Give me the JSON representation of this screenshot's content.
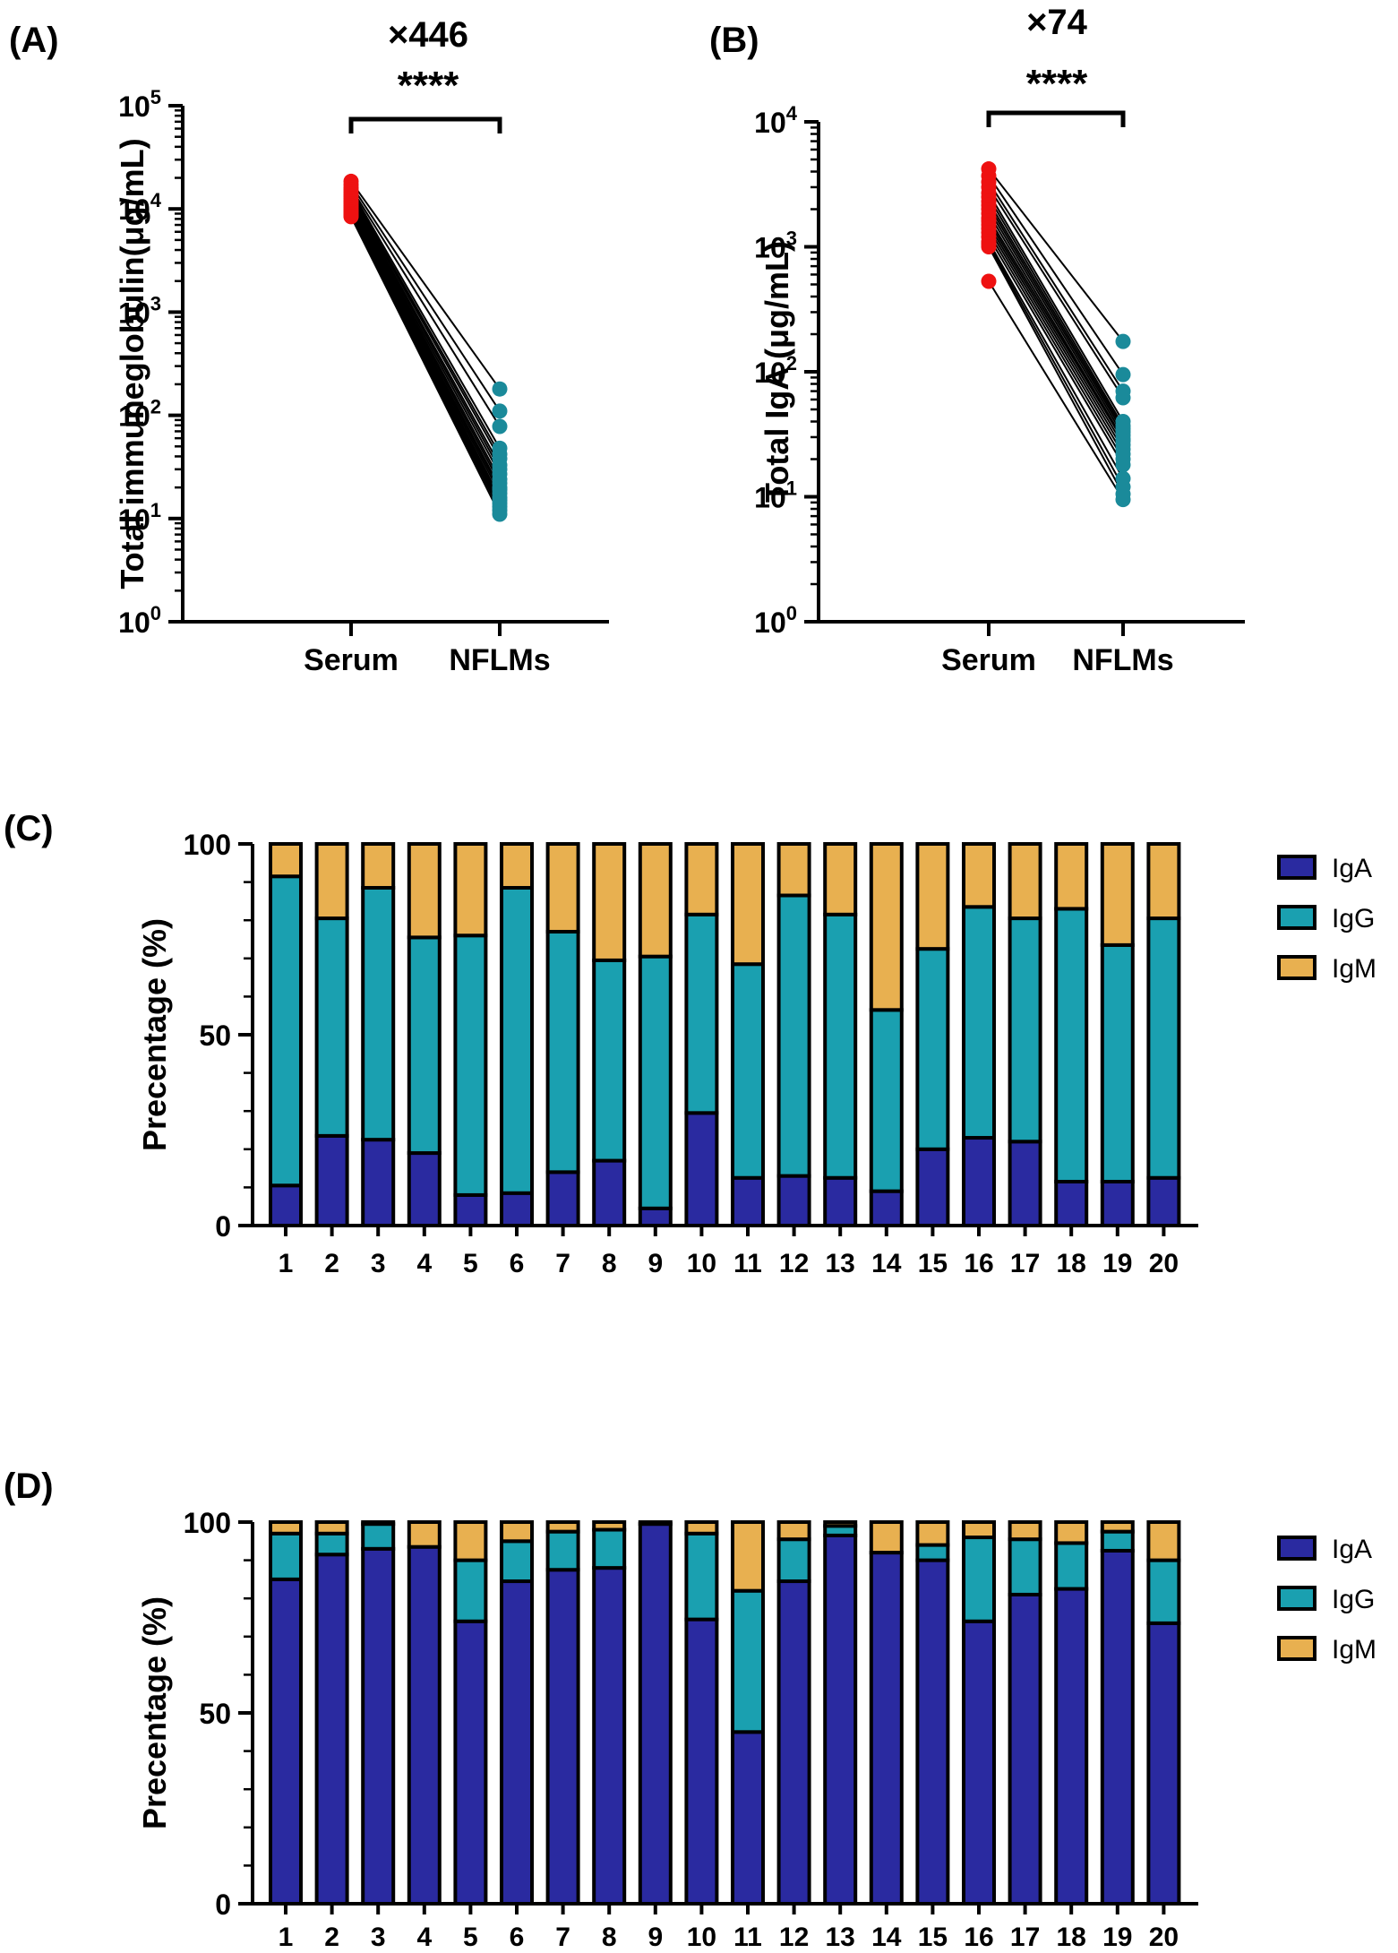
{
  "chart_data": [
    {
      "panel": "(A)",
      "type": "scatter",
      "scale": "log",
      "fold_label": "×446",
      "sig_label": "****",
      "ylabel": "Total immuneglobulin(μg/mL)",
      "ylim": [
        1,
        100000
      ],
      "ytick_exponents": [
        "0",
        "1",
        "2",
        "3",
        "4",
        "5"
      ],
      "categories": [
        "Serum",
        "NFLMs"
      ],
      "colors": {
        "serum": "#ee1111",
        "nflms": "#1a8a9a",
        "line": "#000000"
      },
      "pairs": [
        [
          18500,
          180
        ],
        [
          17200,
          110
        ],
        [
          16000,
          78
        ],
        [
          15300,
          48
        ],
        [
          14500,
          42
        ],
        [
          13800,
          38
        ],
        [
          13200,
          33
        ],
        [
          12600,
          30
        ],
        [
          12000,
          27
        ],
        [
          11600,
          24
        ],
        [
          11100,
          22
        ],
        [
          10700,
          20
        ],
        [
          10300,
          19
        ],
        [
          9900,
          17.5
        ],
        [
          9600,
          16
        ],
        [
          9300,
          15
        ],
        [
          9000,
          14
        ],
        [
          8800,
          13
        ],
        [
          8600,
          12
        ],
        [
          8400,
          11
        ]
      ]
    },
    {
      "panel": "(B)",
      "type": "scatter",
      "scale": "log",
      "fold_label": "×74",
      "sig_label": "****",
      "ylabel": "Total IgA (μg/mL)",
      "ylim": [
        1,
        10000
      ],
      "ytick_exponents": [
        "0",
        "1",
        "2",
        "3",
        "4"
      ],
      "categories": [
        "Serum",
        "NFLMs"
      ],
      "colors": {
        "serum": "#ee1111",
        "nflms": "#1a8a9a",
        "line": "#000000"
      },
      "pairs": [
        [
          4200,
          175
        ],
        [
          3700,
          95
        ],
        [
          3300,
          70
        ],
        [
          3000,
          62
        ],
        [
          2700,
          40
        ],
        [
          2500,
          37
        ],
        [
          2300,
          35
        ],
        [
          2150,
          33
        ],
        [
          2000,
          31
        ],
        [
          1850,
          29
        ],
        [
          1700,
          28
        ],
        [
          1600,
          26
        ],
        [
          1500,
          24
        ],
        [
          1400,
          22
        ],
        [
          1300,
          20
        ],
        [
          1200,
          18
        ],
        [
          1100,
          14
        ],
        [
          1050,
          12
        ],
        [
          1000,
          10.5
        ],
        [
          530,
          9.5
        ]
      ]
    },
    {
      "panel": "(C)",
      "type": "bar",
      "stacked": true,
      "ylabel": "Precentage (%)",
      "ylim": [
        0,
        100
      ],
      "yticks": [
        "0",
        "50",
        "100"
      ],
      "categories": [
        "1",
        "2",
        "3",
        "4",
        "5",
        "6",
        "7",
        "8",
        "9",
        "10",
        "11",
        "12",
        "13",
        "14",
        "15",
        "16",
        "17",
        "18",
        "19",
        "20"
      ],
      "series": [
        {
          "name": "IgA",
          "color": "#2a2aa0",
          "values": [
            10.5,
            23.5,
            22.5,
            19,
            8,
            8.5,
            14,
            17,
            4.5,
            29.5,
            12.5,
            13,
            12.5,
            9,
            20,
            23,
            22,
            11.5,
            11.5,
            12.5
          ]
        },
        {
          "name": "IgG",
          "color": "#1aa0b0",
          "values": [
            81,
            57,
            66,
            56.5,
            68,
            80,
            63,
            52.5,
            66,
            52,
            56,
            73.5,
            69,
            47.5,
            52.5,
            60.5,
            58.5,
            71.5,
            62,
            68
          ]
        },
        {
          "name": "IgM",
          "color": "#e8b050",
          "values": [
            8.5,
            19.5,
            11.5,
            24.5,
            24,
            11.5,
            23,
            30.5,
            29.5,
            18.5,
            31.5,
            13.5,
            18.5,
            43.5,
            27.5,
            16.5,
            19.5,
            17,
            26.5,
            19.5
          ]
        }
      ]
    },
    {
      "panel": "(D)",
      "type": "bar",
      "stacked": true,
      "ylabel": "Precentage (%)",
      "ylim": [
        0,
        100
      ],
      "yticks": [
        "0",
        "50",
        "100"
      ],
      "categories": [
        "1",
        "2",
        "3",
        "4",
        "5",
        "6",
        "7",
        "8",
        "9",
        "10",
        "11",
        "12",
        "13",
        "14",
        "15",
        "16",
        "17",
        "18",
        "19",
        "20"
      ],
      "series": [
        {
          "name": "IgA",
          "color": "#2a2aa0",
          "values": [
            85,
            91.5,
            93,
            93.5,
            74,
            84.5,
            87.5,
            88,
            99.5,
            74.5,
            45,
            84.5,
            96.5,
            92,
            90,
            74,
            81,
            82.5,
            92.5,
            73.5
          ]
        },
        {
          "name": "IgG",
          "color": "#1aa0b0",
          "values": [
            12,
            5.5,
            6.5,
            0,
            16,
            10.5,
            10,
            10,
            0,
            22.5,
            37,
            11,
            2.5,
            0,
            4,
            22,
            14.5,
            12,
            5,
            16.5
          ]
        },
        {
          "name": "IgM",
          "color": "#e8b050",
          "values": [
            3,
            3,
            0.5,
            6.5,
            10,
            5,
            2.5,
            2,
            0.5,
            3,
            18,
            4.5,
            1,
            8,
            6,
            4,
            4.5,
            5.5,
            2.5,
            10
          ]
        }
      ]
    }
  ]
}
